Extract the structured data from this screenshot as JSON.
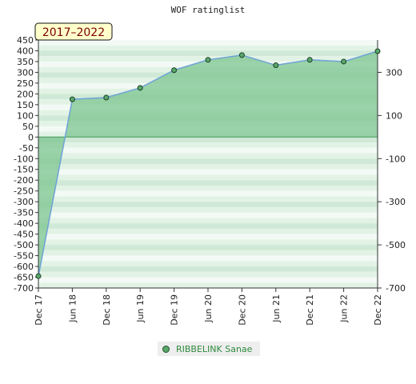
{
  "chart_data": {
    "type": "area",
    "title": "WOF ratinglist",
    "badge": "2017–2022",
    "x": [
      "Dec 17",
      "Jun 18",
      "Dec 18",
      "Jun 19",
      "Dec 19",
      "Jun 20",
      "Dec 20",
      "Jun 21",
      "Dec 21",
      "Jun 22",
      "Dec 22"
    ],
    "series": [
      {
        "name": "RIBBELINK Sanae",
        "values": [
          -645,
          175,
          183,
          228,
          310,
          358,
          380,
          333,
          358,
          350,
          398
        ]
      }
    ],
    "ylim": [
      -700,
      450
    ],
    "yticks_left": [
      450,
      400,
      350,
      300,
      250,
      200,
      150,
      100,
      50,
      0,
      -50,
      -100,
      -150,
      -200,
      -250,
      -300,
      -350,
      -400,
      -450,
      -500,
      -550,
      -600,
      -650,
      -700
    ],
    "yticks_right": [
      300,
      100,
      -100,
      -300,
      -500,
      -700
    ],
    "grid": true,
    "legend_position": "bottom",
    "colors": {
      "fill": "#7cc48f",
      "line": "#6fa3d8",
      "marker": "#58a86a"
    }
  }
}
